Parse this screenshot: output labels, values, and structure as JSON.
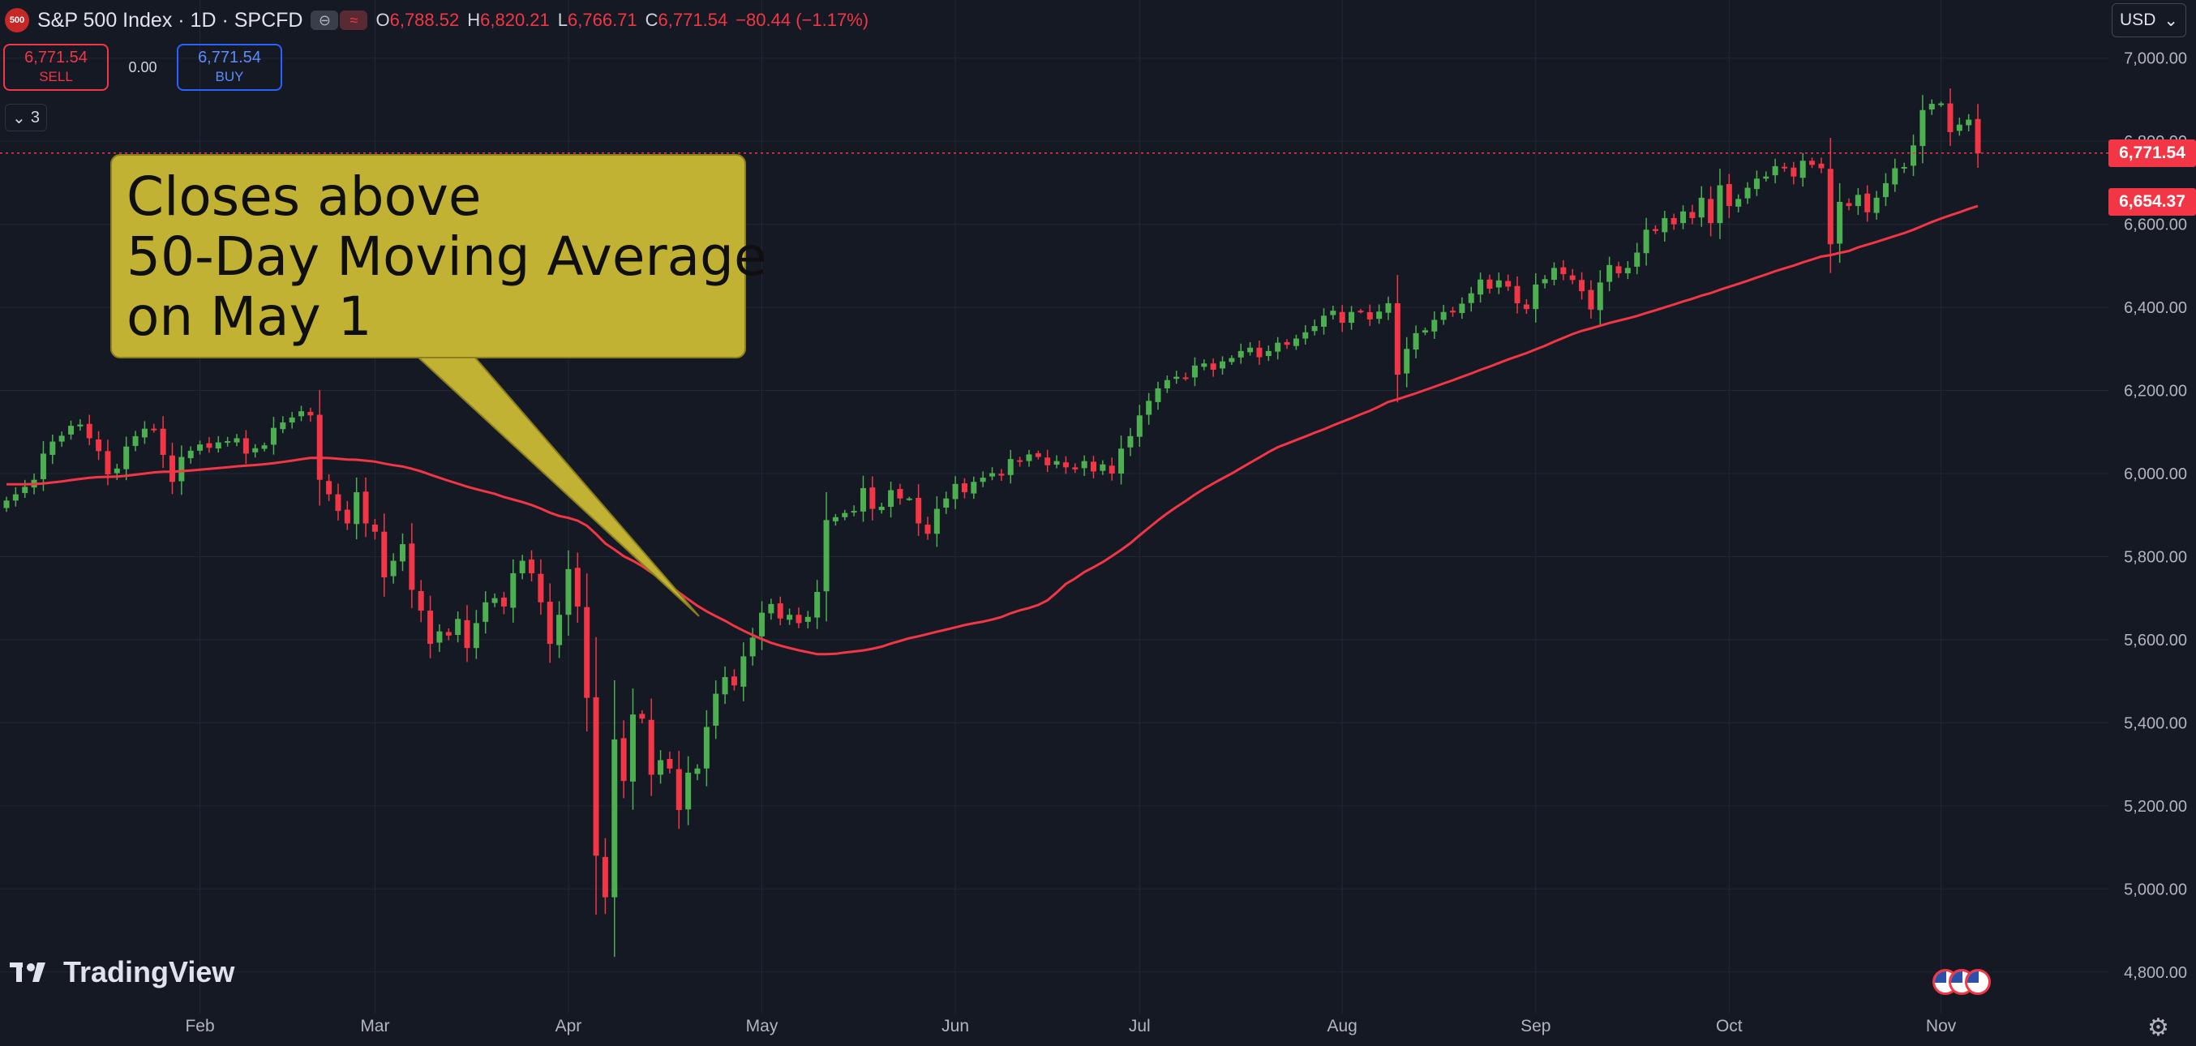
{
  "header": {
    "badge": "500",
    "title": "S&P 500 Index · 1D · SPCFD",
    "pill_1": "⊖",
    "pill_2": "≈",
    "ohlc": {
      "o_label": "O",
      "o": "6,788.52",
      "h_label": "H",
      "h": "6,820.21",
      "l_label": "L",
      "l": "6,766.71",
      "c_label": "C",
      "c": "6,771.54",
      "change": "−80.44 (−1.17%)"
    }
  },
  "trade": {
    "sell_price": "6,771.54",
    "sell_label": "SELL",
    "spread": "0.00",
    "buy_price": "6,771.54",
    "buy_label": "BUY"
  },
  "indicators_toggle": {
    "count": "3"
  },
  "currency": {
    "label": "USD"
  },
  "annotation": {
    "lines": [
      "Closes above",
      "50-Day Moving Average",
      "on May 1"
    ]
  },
  "price_tags": {
    "last": "6,771.54",
    "ma": "6,654.37"
  },
  "brand": {
    "name": "TradingView"
  },
  "colors": {
    "background": "#151924",
    "up": "#4caf50",
    "down": "#f23645",
    "ma": "#f23645",
    "grid": "#232733",
    "callout": "#c2b233"
  },
  "chart_data": {
    "type": "candlestick",
    "title": "S&P 500 Index · 1D · SPCFD",
    "ylim": [
      4700,
      7140
    ],
    "y_ticks": [
      4800,
      5000,
      5200,
      5400,
      5600,
      5800,
      6000,
      6200,
      6400,
      6600,
      6800,
      7000
    ],
    "y_tick_labels": [
      "4,800.00",
      "5,000.00",
      "5,200.00",
      "5,400.00",
      "5,600.00",
      "5,800.00",
      "6,000.00",
      "6,200.00",
      "6,400.00",
      "6,600.00",
      "6,800.00",
      "7,000.00"
    ],
    "x_labels": [
      {
        "label": "Feb",
        "day": 21
      },
      {
        "label": "Mar",
        "day": 40
      },
      {
        "label": "Apr",
        "day": 61
      },
      {
        "label": "May",
        "day": 82
      },
      {
        "label": "Jun",
        "day": 103
      },
      {
        "label": "Jul",
        "day": 123
      },
      {
        "label": "Aug",
        "day": 145
      },
      {
        "label": "Sep",
        "day": 166
      },
      {
        "label": "Oct",
        "day": 187
      },
      {
        "label": "Nov",
        "day": 210
      }
    ],
    "last_price": 6771.54,
    "ma_last": 6654.37,
    "closes": [
      5935,
      5950,
      5968,
      5985,
      6048,
      6077,
      6091,
      6115,
      6118,
      6085,
      6054,
      5998,
      6012,
      6065,
      6090,
      6108,
      6105,
      6045,
      5980,
      6040,
      6055,
      6070,
      6062,
      6075,
      6078,
      6085,
      6048,
      6061,
      6068,
      6110,
      6123,
      6135,
      6150,
      6140,
      5985,
      5950,
      5910,
      5880,
      5955,
      5880,
      5860,
      5750,
      5790,
      5830,
      5720,
      5670,
      5590,
      5620,
      5610,
      5650,
      5580,
      5640,
      5690,
      5700,
      5680,
      5760,
      5790,
      5760,
      5690,
      5590,
      5660,
      5770,
      5680,
      5460,
      5080,
      4980,
      5360,
      5260,
      5420,
      5410,
      5275,
      5310,
      5290,
      5190,
      5280,
      5290,
      5390,
      5470,
      5510,
      5490,
      5560,
      5605,
      5665,
      5686,
      5651,
      5660,
      5640,
      5655,
      5715,
      5888,
      5895,
      5905,
      5910,
      5965,
      5915,
      5920,
      5960,
      5940,
      5940,
      5880,
      5855,
      5915,
      5940,
      5975,
      5955,
      5980,
      5990,
      6001,
      5995,
      6035,
      6030,
      6046,
      6040,
      6020,
      6030,
      6015,
      6010,
      6030,
      6005,
      6022,
      6000,
      6060,
      6090,
      6140,
      6175,
      6205,
      6225,
      6233,
      6230,
      6260,
      6265,
      6250,
      6270,
      6278,
      6295,
      6303,
      6280,
      6295,
      6315,
      6310,
      6325,
      6340,
      6355,
      6380,
      6392,
      6363,
      6389,
      6390,
      6371,
      6390,
      6410,
      6238,
      6300,
      6338,
      6345,
      6370,
      6389,
      6388,
      6409,
      6434,
      6467,
      6445,
      6465,
      6450,
      6410,
      6396,
      6455,
      6468,
      6495,
      6480,
      6466,
      6439,
      6395,
      6460,
      6502,
      6482,
      6495,
      6532,
      6587,
      6584,
      6615,
      6600,
      6631,
      6615,
      6664,
      6603,
      6694,
      6644,
      6661,
      6688,
      6710,
      6715,
      6740,
      6735,
      6715,
      6753,
      6743,
      6735,
      6552,
      6654,
      6644,
      6671,
      6629,
      6664,
      6699,
      6735,
      6738,
      6790,
      6875,
      6890,
      6891,
      6822,
      6840,
      6852,
      6771
    ],
    "series": [
      {
        "name": "",
        "ma_period": 50
      }
    ]
  }
}
